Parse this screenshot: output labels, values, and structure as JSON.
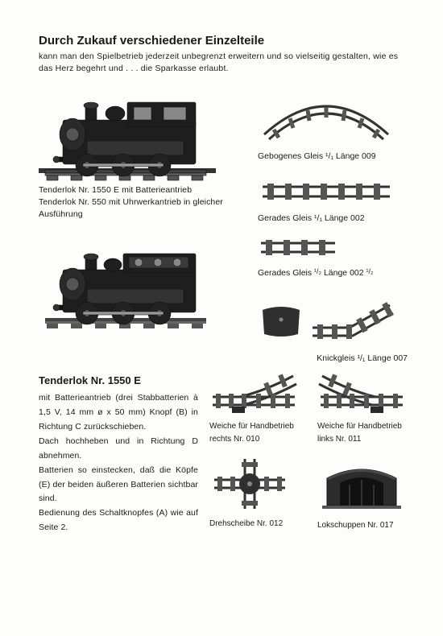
{
  "header": {
    "title": "Durch Zukauf verschiedener Einzelteile",
    "intro": "kann man den Spielbetrieb jederzeit unbegrenzt erweitern und so vielseitig gestalten, wie es das Herz begehrt und . . . die Sparkasse erlaubt."
  },
  "loco1": {
    "caption_line1": "Tenderlok Nr. 1550 E mit Batterieantrieb",
    "caption_line2": "Tenderlok Nr. 550 mit Uhrwerkantrieb in gleicher Ausführung"
  },
  "tracks": {
    "curved": "Gebogenes Gleis ¹/₁ Länge 009",
    "straight_full": "Gerades Gleis ¹/₁ Länge 002",
    "straight_half_pre": "Gerades Gleis ",
    "straight_half_mid": "¹/₂",
    "straight_half_post": " Länge 002 ",
    "straight_half_end": "¹/₂",
    "bent": "Knickgleis ¹/₁ Länge 007"
  },
  "section2": {
    "title": "Tenderlok Nr. 1550 E",
    "body": "mit Batterieantrieb (drei Stabbatterien à 1,5 V, 14 mm ø x 50 mm) Knopf (B) in Richtung C zurückschieben.\nDach hochheben und in Richtung D abnehmen.\nBatterien so einstecken, daß die Köpfe (E) der beiden äußeren Batterien sichtbar sind.\nBedienung des Schaltknopfes (A) wie auf Seite 2."
  },
  "grid": {
    "switch_right_l1": "Weiche für Handbetrieb",
    "switch_right_l2": "rechts Nr. 010",
    "switch_left_l1": "Weiche für Handbetrieb",
    "switch_left_l2": "links Nr. 011",
    "turntable": "Drehscheibe Nr. 012",
    "shed": "Lokschuppen Nr. 017"
  },
  "style": {
    "ink": "#1a1a1a",
    "paper": "#fdfdfb"
  }
}
